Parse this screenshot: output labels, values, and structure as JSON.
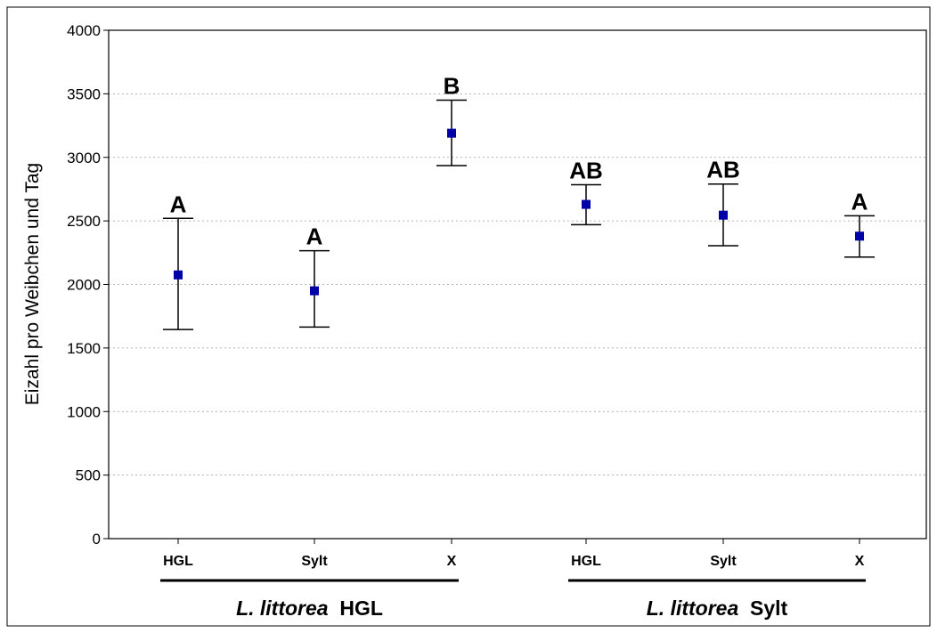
{
  "chart_data": {
    "type": "scatter",
    "title": "",
    "xlabel": "",
    "ylabel": "Eizahl pro Weibchen und Tag",
    "ylim": [
      0,
      4000
    ],
    "yticks": [
      0,
      500,
      1000,
      1500,
      2000,
      2500,
      3000,
      3500,
      4000
    ],
    "grid": "horizontal dotted",
    "marker_color": "#0000A8",
    "categories": [
      "HGL",
      "Sylt",
      "X",
      "HGL",
      "Sylt",
      "X"
    ],
    "points": [
      {
        "category": "HGL",
        "mean": 2075,
        "lower": 1645,
        "upper": 2520,
        "letter": "A"
      },
      {
        "category": "Sylt",
        "mean": 1950,
        "lower": 1665,
        "upper": 2265,
        "letter": "A"
      },
      {
        "category": "X",
        "mean": 3190,
        "lower": 2935,
        "upper": 3450,
        "letter": "B"
      },
      {
        "category": "HGL",
        "mean": 2630,
        "lower": 2470,
        "upper": 2785,
        "letter": "AB"
      },
      {
        "category": "Sylt",
        "mean": 2545,
        "lower": 2305,
        "upper": 2790,
        "letter": "AB"
      },
      {
        "category": "X",
        "mean": 2380,
        "lower": 2215,
        "upper": 2540,
        "letter": "A"
      }
    ],
    "groups": [
      {
        "italic": "L. littorea",
        "name": "HGL"
      },
      {
        "italic": "L. littorea",
        "name": "Sylt"
      }
    ]
  }
}
